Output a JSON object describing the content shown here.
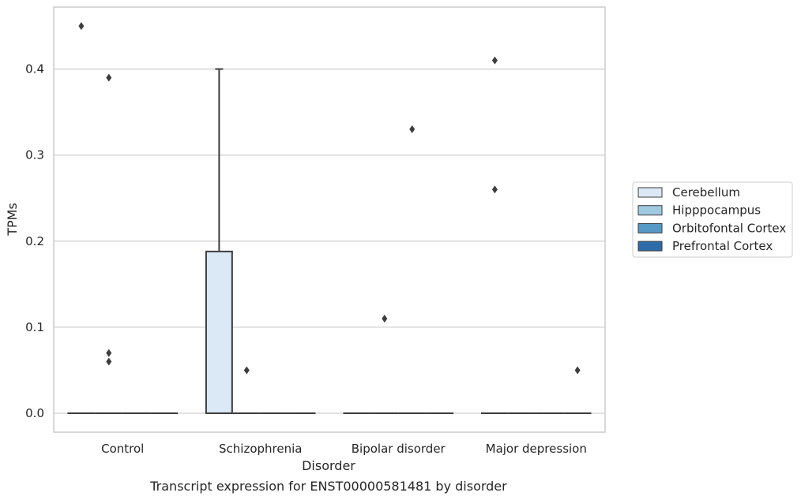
{
  "chart_data": {
    "type": "box",
    "title": "",
    "caption": "Transcript expression for ENST00000581481 by disorder",
    "xlabel": "Disorder",
    "ylabel": "TPMs",
    "ylim": [
      -0.022,
      0.472
    ],
    "yticks": [
      0.0,
      0.1,
      0.2,
      0.3,
      0.4
    ],
    "ytick_labels": [
      "0.0",
      "0.1",
      "0.2",
      "0.3",
      "0.4"
    ],
    "grid": "horizontal",
    "legend_position": "right",
    "categories": [
      "Control",
      "Schizophrenia",
      "Bipolar disorder",
      "Major depression"
    ],
    "series": [
      {
        "name": "Cerebellum",
        "color": "#dbe8f5",
        "boxes": [
          {
            "q1": 0.0,
            "median": 0.0,
            "q3": 0.0,
            "whislo": 0.0,
            "whishi": 0.0,
            "fliers": [
              0.45
            ]
          },
          {
            "q1": 0.0,
            "median": 0.0,
            "q3": 0.188,
            "whislo": 0.0,
            "whishi": 0.4,
            "fliers": []
          },
          {
            "q1": 0.0,
            "median": 0.0,
            "q3": 0.0,
            "whislo": 0.0,
            "whishi": 0.0,
            "fliers": []
          },
          {
            "q1": 0.0,
            "median": 0.0,
            "q3": 0.0,
            "whislo": 0.0,
            "whishi": 0.0,
            "fliers": [
              0.41,
              0.26
            ]
          }
        ]
      },
      {
        "name": "Hipppocampus",
        "color": "#9ec9e1",
        "boxes": [
          {
            "q1": 0.0,
            "median": 0.0,
            "q3": 0.0,
            "whislo": 0.0,
            "whishi": 0.0,
            "fliers": [
              0.39,
              0.07,
              0.06
            ]
          },
          {
            "q1": 0.0,
            "median": 0.0,
            "q3": 0.0,
            "whislo": 0.0,
            "whishi": 0.0,
            "fliers": [
              0.05
            ]
          },
          {
            "q1": 0.0,
            "median": 0.0,
            "q3": 0.0,
            "whislo": 0.0,
            "whishi": 0.0,
            "fliers": [
              0.11
            ]
          },
          {
            "q1": 0.0,
            "median": 0.0,
            "q3": 0.0,
            "whislo": 0.0,
            "whishi": 0.0,
            "fliers": []
          }
        ]
      },
      {
        "name": "Orbitofontal Cortex",
        "color": "#5599c7",
        "boxes": [
          {
            "q1": 0.0,
            "median": 0.0,
            "q3": 0.0,
            "whislo": 0.0,
            "whishi": 0.0,
            "fliers": []
          },
          {
            "q1": 0.0,
            "median": 0.0,
            "q3": 0.0,
            "whislo": 0.0,
            "whishi": 0.0,
            "fliers": []
          },
          {
            "q1": 0.0,
            "median": 0.0,
            "q3": 0.0,
            "whislo": 0.0,
            "whishi": 0.0,
            "fliers": [
              0.33
            ]
          },
          {
            "q1": 0.0,
            "median": 0.0,
            "q3": 0.0,
            "whislo": 0.0,
            "whishi": 0.0,
            "fliers": []
          }
        ]
      },
      {
        "name": "Prefrontal Cortex",
        "color": "#2d6ca8",
        "boxes": [
          {
            "q1": 0.0,
            "median": 0.0,
            "q3": 0.0,
            "whislo": 0.0,
            "whishi": 0.0,
            "fliers": []
          },
          {
            "q1": 0.0,
            "median": 0.0,
            "q3": 0.0,
            "whislo": 0.0,
            "whishi": 0.0,
            "fliers": []
          },
          {
            "q1": 0.0,
            "median": 0.0,
            "q3": 0.0,
            "whislo": 0.0,
            "whishi": 0.0,
            "fliers": []
          },
          {
            "q1": 0.0,
            "median": 0.0,
            "q3": 0.0,
            "whislo": 0.0,
            "whishi": 0.0,
            "fliers": [
              0.05
            ]
          }
        ]
      }
    ]
  }
}
